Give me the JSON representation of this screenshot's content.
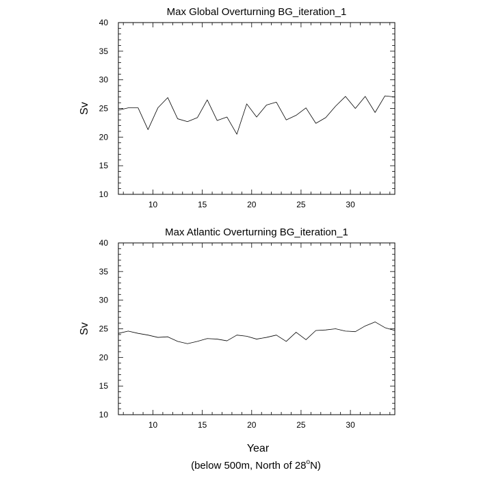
{
  "chart_data": [
    {
      "type": "line",
      "title": "Max Global Overturning BG_iteration_1",
      "xlabel": "",
      "ylabel": "Sv",
      "xlim": [
        6.5,
        34.5
      ],
      "ylim": [
        10,
        40
      ],
      "x_ticks": [
        10,
        15,
        20,
        25,
        30
      ],
      "y_ticks": [
        10,
        15,
        20,
        25,
        30,
        35,
        40
      ],
      "x_tick_labels": [
        "10",
        "15",
        "20",
        "25",
        "30"
      ],
      "y_tick_labels": [
        "10",
        "15",
        "20",
        "25",
        "30",
        "35",
        "40"
      ],
      "grid": false,
      "series": [
        {
          "color": "#000000",
          "x": [
            6.5,
            7.5,
            8.5,
            9.5,
            10.5,
            11.5,
            12.5,
            13.5,
            14.5,
            15.5,
            16.5,
            17.5,
            18.5,
            19.5,
            20.5,
            21.5,
            22.5,
            23.5,
            24.5,
            25.5,
            26.5,
            27.5,
            28.5,
            29.5,
            30.5,
            31.5,
            32.5,
            33.5,
            34.5
          ],
          "values": [
            24.7,
            25.1,
            25.1,
            21.3,
            25.1,
            26.9,
            23.2,
            22.7,
            23.4,
            26.5,
            22.9,
            23.5,
            20.5,
            25.8,
            23.5,
            25.6,
            26.1,
            23.0,
            23.8,
            25.1,
            22.4,
            23.4,
            25.4,
            27.1,
            25.0,
            27.1,
            24.3,
            27.2,
            27.0
          ]
        }
      ]
    },
    {
      "type": "line",
      "title": "Max Atlantic Overturning BG_iteration_1",
      "xlabel": "Year",
      "ylabel": "Sv",
      "xlim": [
        6.5,
        34.5
      ],
      "ylim": [
        10,
        40
      ],
      "x_ticks": [
        10,
        15,
        20,
        25,
        30
      ],
      "y_ticks": [
        10,
        15,
        20,
        25,
        30,
        35,
        40
      ],
      "x_tick_labels": [
        "10",
        "15",
        "20",
        "25",
        "30"
      ],
      "y_tick_labels": [
        "10",
        "15",
        "20",
        "25",
        "30",
        "35",
        "40"
      ],
      "grid": false,
      "series": [
        {
          "color": "#000000",
          "x": [
            6.5,
            7.5,
            8.5,
            9.5,
            10.5,
            11.5,
            12.5,
            13.5,
            14.5,
            15.5,
            16.5,
            17.5,
            18.5,
            19.5,
            20.5,
            21.5,
            22.5,
            23.5,
            24.5,
            25.5,
            26.5,
            27.5,
            28.5,
            29.5,
            30.5,
            31.5,
            32.5,
            33.5,
            34.5
          ],
          "values": [
            24.2,
            24.6,
            24.2,
            23.9,
            23.5,
            23.6,
            22.8,
            22.4,
            22.8,
            23.3,
            23.2,
            22.9,
            23.9,
            23.7,
            23.2,
            23.5,
            23.9,
            22.8,
            24.4,
            23.1,
            24.7,
            24.8,
            25.0,
            24.6,
            24.5,
            25.5,
            26.2,
            25.2,
            24.7
          ]
        }
      ]
    }
  ],
  "footnote": {
    "prefix": "(below 500m, North of 28",
    "superscript": "o",
    "suffix": "N)"
  }
}
